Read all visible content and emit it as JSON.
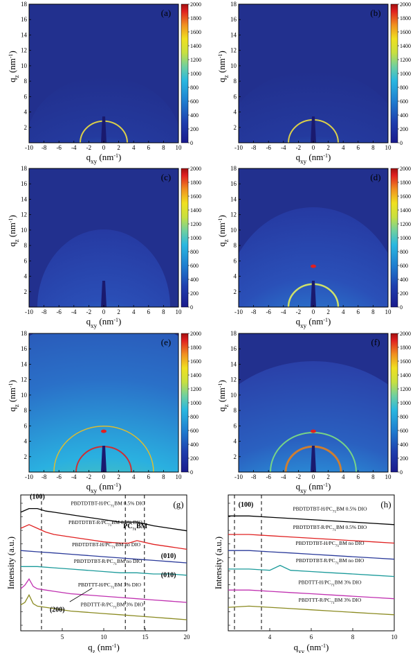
{
  "chart_data": [
    {
      "type": "heatmap",
      "panel": "(a)",
      "xlabel": "qxy (nm-1)",
      "ylabel": "qz (nm-1)",
      "xlim": [
        -10,
        10
      ],
      "ylim": [
        0,
        18
      ],
      "xticks": [
        -10,
        -8,
        -6,
        -4,
        -2,
        0,
        2,
        4,
        6,
        8,
        10
      ],
      "yticks": [
        2,
        4,
        6,
        8,
        10,
        12,
        14,
        16,
        18
      ],
      "colorbar": {
        "range": [
          0,
          2000
        ],
        "ticks": [
          0,
          200,
          400,
          600,
          800,
          1000,
          1200,
          1400,
          1600,
          1800,
          2000
        ]
      }
    },
    {
      "type": "heatmap",
      "panel": "(b)",
      "xlabel": "qxy (nm-1)",
      "ylabel": "qz (nm-1)",
      "xlim": [
        -10,
        10
      ],
      "ylim": [
        0,
        18
      ],
      "xticks": [
        -10,
        -8,
        -6,
        -4,
        -2,
        0,
        2,
        4,
        6,
        8,
        10
      ],
      "yticks": [
        2,
        4,
        6,
        8,
        10,
        12,
        14,
        16,
        18
      ],
      "colorbar": {
        "range": [
          0,
          2000
        ],
        "ticks": [
          0,
          200,
          400,
          600,
          800,
          1000,
          1200,
          1400,
          1600,
          1800,
          2000
        ]
      }
    },
    {
      "type": "heatmap",
      "panel": "(c)",
      "xlabel": "qxy (nm-1)",
      "ylabel": "qz (nm-1)",
      "xlim": [
        -10,
        10
      ],
      "ylim": [
        0,
        18
      ],
      "xticks": [
        -10,
        -8,
        -6,
        -4,
        -2,
        0,
        2,
        4,
        6,
        8,
        10
      ],
      "yticks": [
        2,
        4,
        6,
        8,
        10,
        12,
        14,
        16,
        18
      ],
      "colorbar": {
        "range": [
          0,
          2000
        ],
        "ticks": [
          0,
          200,
          400,
          600,
          800,
          1000,
          1200,
          1400,
          1600,
          1800,
          2000
        ]
      }
    },
    {
      "type": "heatmap",
      "panel": "(d)",
      "xlabel": "qxy (nm-1)",
      "ylabel": "qz (nm-1)",
      "xlim": [
        -10,
        10
      ],
      "ylim": [
        0,
        18
      ],
      "xticks": [
        -10,
        -8,
        -6,
        -4,
        -2,
        0,
        2,
        4,
        6,
        8,
        10
      ],
      "yticks": [
        2,
        4,
        6,
        8,
        10,
        12,
        14,
        16,
        18
      ],
      "colorbar": {
        "range": [
          0,
          2000
        ],
        "ticks": [
          0,
          200,
          400,
          600,
          800,
          1000,
          1200,
          1400,
          1600,
          1800,
          2000
        ]
      }
    },
    {
      "type": "heatmap",
      "panel": "(e)",
      "xlabel": "qxy (nm-1)",
      "ylabel": "qz (nm-1)",
      "xlim": [
        -10,
        10
      ],
      "ylim": [
        0,
        18
      ],
      "xticks": [
        -10,
        -8,
        -6,
        -4,
        -2,
        0,
        2,
        4,
        6,
        8,
        10
      ],
      "yticks": [
        2,
        4,
        6,
        8,
        10,
        12,
        14,
        16,
        18
      ],
      "colorbar": {
        "range": [
          0,
          2000
        ],
        "ticks": [
          0,
          200,
          400,
          600,
          800,
          1000,
          1200,
          1400,
          1600,
          1800,
          2000
        ]
      }
    },
    {
      "type": "heatmap",
      "panel": "(f)",
      "xlabel": "qxy (nm-1)",
      "ylabel": "qz (nm-1)",
      "xlim": [
        -10,
        10
      ],
      "ylim": [
        0,
        18
      ],
      "xticks": [
        -10,
        -8,
        -6,
        -4,
        -2,
        0,
        2,
        4,
        6,
        8,
        10
      ],
      "yticks": [
        2,
        4,
        6,
        8,
        10,
        12,
        14,
        16,
        18
      ],
      "colorbar": {
        "range": [
          0,
          2000
        ],
        "ticks": [
          0,
          200,
          400,
          600,
          800,
          1000,
          1200,
          1400,
          1600,
          1800,
          2000
        ]
      }
    },
    {
      "type": "line",
      "panel": "(g)",
      "xlabel": "qz (nm-1)",
      "ylabel": "Intensity (a.u.)",
      "xlim": [
        0,
        20
      ],
      "xticks": [
        5,
        10,
        15,
        20
      ],
      "dashed_lines_x": [
        2.5,
        12.6,
        14.9
      ],
      "annotations": [
        "(100)",
        "PC71BM",
        "(010)",
        "(010)",
        "(200)"
      ],
      "series": [
        {
          "name": "PBDTDTBT-H/PC71BM 0.5% DIO",
          "color": "#000000",
          "x": [
            0,
            1,
            2,
            3,
            4,
            6,
            8,
            10,
            12,
            13,
            14,
            16,
            18,
            20
          ],
          "y": [
            8.6,
            8.9,
            8.9,
            8.7,
            8.6,
            8.4,
            8.2,
            8.0,
            7.8,
            7.8,
            7.8,
            7.5,
            7.3,
            7.1
          ]
        },
        {
          "name": "PBDTDTBT-R/PC71BM 0.5% DIO",
          "color": "#e02020",
          "x": [
            0,
            1,
            2,
            3,
            4,
            6,
            8,
            10,
            12,
            13,
            14,
            16,
            18,
            20
          ],
          "y": [
            7.3,
            7.6,
            7.3,
            7.0,
            6.8,
            6.6,
            6.4,
            6.2,
            6.1,
            6.1,
            6.3,
            6.0,
            5.8,
            5.6
          ]
        },
        {
          "name": "PBDTDTBT-H/PC71BM no DIO",
          "color": "#2a3a9a",
          "x": [
            0,
            2,
            4,
            6,
            8,
            10,
            12,
            14,
            16,
            18,
            20
          ],
          "y": [
            5.5,
            5.4,
            5.3,
            5.2,
            5.1,
            5.0,
            4.9,
            4.8,
            4.7,
            4.6,
            4.5
          ]
        },
        {
          "name": "PBDTDTBT-R/PC71BM no DIO",
          "color": "#1a9a9a",
          "x": [
            0,
            2,
            4,
            6,
            8,
            10,
            12,
            14,
            16,
            18,
            20
          ],
          "y": [
            4.2,
            4.2,
            4.1,
            4.0,
            3.9,
            3.8,
            3.7,
            3.7,
            3.6,
            3.6,
            3.5
          ]
        },
        {
          "name": "PBDTTT-H/PC71BM 3% DIO",
          "color": "#c030b0",
          "x": [
            0,
            0.5,
            1,
            1.5,
            2,
            3,
            4,
            6,
            8,
            10,
            12,
            14,
            16,
            18,
            20
          ],
          "y": [
            2.4,
            2.7,
            3.2,
            2.6,
            2.4,
            2.3,
            2.2,
            2.0,
            1.9,
            1.8,
            1.7,
            1.6,
            1.5,
            1.4,
            1.3
          ]
        },
        {
          "name": "PBDTTT-R/PC71BM 3% DIO",
          "color": "#8a8a20",
          "x": [
            0,
            0.5,
            1,
            1.5,
            2,
            3,
            4,
            6,
            8,
            10,
            12,
            14,
            16,
            18,
            20
          ],
          "y": [
            1.1,
            1.3,
            1.9,
            1.2,
            1.0,
            0.9,
            0.8,
            0.6,
            0.5,
            0.4,
            0.3,
            0.2,
            0.1,
            0.0,
            -0.1
          ]
        }
      ]
    },
    {
      "type": "line",
      "panel": "(h)",
      "xlabel": "qxy (nm-1)",
      "ylabel": "Intensity (a.u.)",
      "xlim": [
        2,
        10
      ],
      "xticks": [
        4,
        6,
        8,
        10
      ],
      "dashed_lines_x": [
        2.3,
        3.6
      ],
      "annotations": [
        "(100)"
      ],
      "series": [
        {
          "name": "PBDTDTBT-H/PC71BM 0.5% DIO",
          "color": "#000000",
          "x": [
            2,
            3,
            4,
            5,
            6,
            7,
            8,
            9,
            10
          ],
          "y": [
            8.3,
            8.3,
            8.2,
            8.1,
            8.0,
            7.9,
            7.8,
            7.7,
            7.6
          ]
        },
        {
          "name": "PBDTDTBT-R/PC71BM 0.5% DIO",
          "color": "#e02020",
          "x": [
            2,
            3,
            4,
            5,
            6,
            7,
            8,
            9,
            10
          ],
          "y": [
            6.8,
            6.8,
            6.7,
            6.6,
            6.5,
            6.4,
            6.3,
            6.2,
            6.1
          ]
        },
        {
          "name": "PBDTDTBT-H/PC71BM no DIO",
          "color": "#2a3a9a",
          "x": [
            2,
            3,
            4,
            5,
            6,
            7,
            8,
            9,
            10
          ],
          "y": [
            5.5,
            5.5,
            5.4,
            5.3,
            5.2,
            5.1,
            5.0,
            4.9,
            4.8
          ]
        },
        {
          "name": "PBDTDTBT-R/PC71BM no DIO",
          "color": "#1a9a9a",
          "x": [
            2,
            3,
            4,
            4.5,
            5,
            6,
            7,
            8,
            9,
            10
          ],
          "y": [
            4.0,
            4.0,
            3.9,
            4.3,
            3.9,
            3.8,
            3.7,
            3.6,
            3.5,
            3.4
          ]
        },
        {
          "name": "PBDTTT-H/PC71BM 3% DIO",
          "color": "#c030b0",
          "x": [
            2,
            3,
            4,
            5,
            6,
            7,
            8,
            9,
            10
          ],
          "y": [
            2.3,
            2.3,
            2.2,
            2.1,
            2.0,
            1.9,
            1.8,
            1.7,
            1.6
          ]
        },
        {
          "name": "PBDTTT-R/PC71BM 3% DIO",
          "color": "#8a8a20",
          "x": [
            2,
            3,
            4,
            5,
            6,
            7,
            8,
            9,
            10
          ],
          "y": [
            0.9,
            1.0,
            0.9,
            0.8,
            0.7,
            0.6,
            0.5,
            0.4,
            0.3
          ]
        }
      ]
    }
  ]
}
